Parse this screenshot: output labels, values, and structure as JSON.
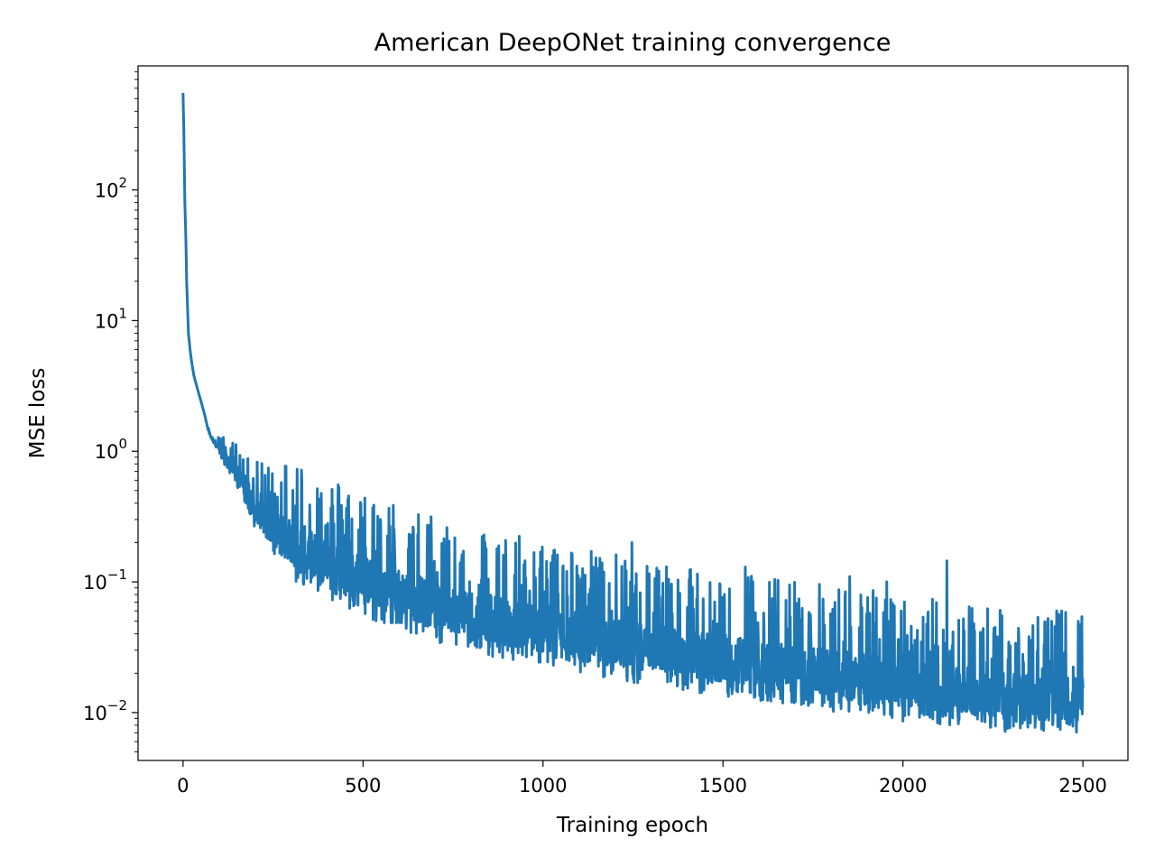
{
  "chart_data": {
    "type": "line",
    "title": "American DeepONet training convergence",
    "xlabel": "Training epoch",
    "ylabel": "MSE loss",
    "xlim": [
      -125,
      2625
    ],
    "ylim": [
      0.0043,
      890
    ],
    "yscale": "log",
    "grid": false,
    "legend": "none",
    "line_color": "#1f77b4",
    "xticks": [
      {
        "value": 0,
        "label": "0"
      },
      {
        "value": 500,
        "label": "500"
      },
      {
        "value": 1000,
        "label": "1000"
      },
      {
        "value": 1500,
        "label": "1500"
      },
      {
        "value": 2000,
        "label": "2000"
      },
      {
        "value": 2500,
        "label": "2500"
      }
    ],
    "yticks": [
      {
        "value": 0.01,
        "base": "10",
        "exp": "−2"
      },
      {
        "value": 0.1,
        "base": "10",
        "exp": "−1"
      },
      {
        "value": 1,
        "base": "10",
        "exp": "0"
      },
      {
        "value": 10,
        "base": "10",
        "exp": "1"
      },
      {
        "value": 100,
        "base": "10",
        "exp": "2"
      }
    ],
    "series": [
      {
        "x": [
          0,
          2,
          5,
          8,
          10,
          15,
          20,
          25,
          30,
          40,
          50,
          60,
          70,
          80,
          100,
          120,
          150,
          170,
          190,
          200,
          220,
          250,
          270,
          300,
          320,
          350,
          380,
          400,
          450,
          500,
          550,
          600,
          650,
          700,
          750,
          800,
          900,
          1000,
          1100,
          1200,
          1300,
          1400,
          1500,
          1600,
          1700,
          1800,
          1900,
          2000,
          2100,
          2200,
          2300,
          2400,
          2500
        ],
        "y": [
          540,
          300,
          80,
          40,
          20,
          8,
          5.8,
          4.6,
          3.8,
          3.0,
          2.4,
          1.9,
          1.45,
          1.25,
          1.05,
          0.85,
          0.65,
          0.55,
          0.42,
          0.34,
          0.29,
          0.25,
          0.22,
          0.2,
          0.18,
          0.16,
          0.14,
          0.13,
          0.115,
          0.1,
          0.09,
          0.08,
          0.072,
          0.065,
          0.06,
          0.055,
          0.047,
          0.042,
          0.037,
          0.033,
          0.03,
          0.027,
          0.025,
          0.023,
          0.021,
          0.019,
          0.018,
          0.016,
          0.015,
          0.014,
          0.013,
          0.012,
          0.012
        ]
      }
    ],
    "noise": {
      "seed": 12345,
      "start_epoch": 60,
      "spike_epochs": [
        402,
        488,
        585,
        728,
        842,
        1247,
        1562,
        1852,
        1955,
        2122,
        2275,
        2441,
        2487
      ],
      "spike_values": [
        0.28,
        0.25,
        0.2,
        0.19,
        0.18,
        0.2,
        0.13,
        0.11,
        0.1,
        0.145,
        0.055,
        0.06,
        0.05
      ]
    }
  }
}
